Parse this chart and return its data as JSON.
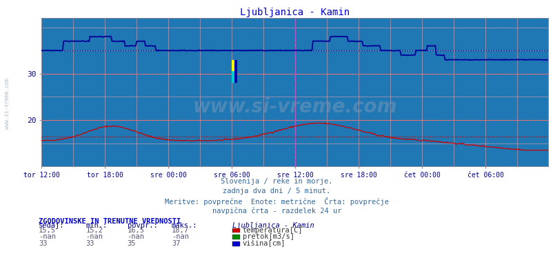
{
  "title": "Ljubljanica - Kamin",
  "title_color": "#0000cc",
  "fig_bg_color": "#ffffff",
  "plot_bg_color": "#ccdcec",
  "ylim": [
    10,
    42
  ],
  "yticks": [
    20,
    30
  ],
  "xlim": [
    0,
    575
  ],
  "x_tick_labels": [
    "tor 12:00",
    "tor 18:00",
    "sre 00:00",
    "sre 06:00",
    "sre 12:00",
    "sre 18:00",
    "čet 00:00",
    "čet 06:00"
  ],
  "x_tick_positions": [
    0,
    72,
    144,
    216,
    288,
    360,
    432,
    504
  ],
  "temp_color": "#cc0000",
  "height_color": "#000099",
  "avg_temp": 16.5,
  "avg_height": 35.0,
  "vertical_line_x": 288,
  "vertical_line_color": "#cc44cc",
  "watermark": "www.si-vreme.com",
  "subtitle_lines": [
    "Slovenija / reke in morje.",
    "zadnja dva dni / 5 minut.",
    "Meritve: povprečne  Enote: metrične  Črta: povprečje",
    "navpična črta - razdelek 24 ur"
  ],
  "table_header": "ZGODOVINSKE IN TRENUTNE VREDNOSTI",
  "table_cols": [
    "sedaj:",
    "min.:",
    "povpr.:",
    "maks.:"
  ],
  "table_data": [
    [
      "15,5",
      "15,2",
      "16,5",
      "18,7"
    ],
    [
      "-nan",
      "-nan",
      "-nan",
      "-nan"
    ],
    [
      "33",
      "33",
      "35",
      "37"
    ]
  ],
  "table_labels": [
    "temperatura[C]",
    "pretok[m3/s]",
    "višina[cm]"
  ],
  "table_label_colors": [
    "#cc0000",
    "#008800",
    "#0000cc"
  ],
  "station_name": "Ljubljanica - Kamin",
  "left_label": "www.si-vreme.com"
}
